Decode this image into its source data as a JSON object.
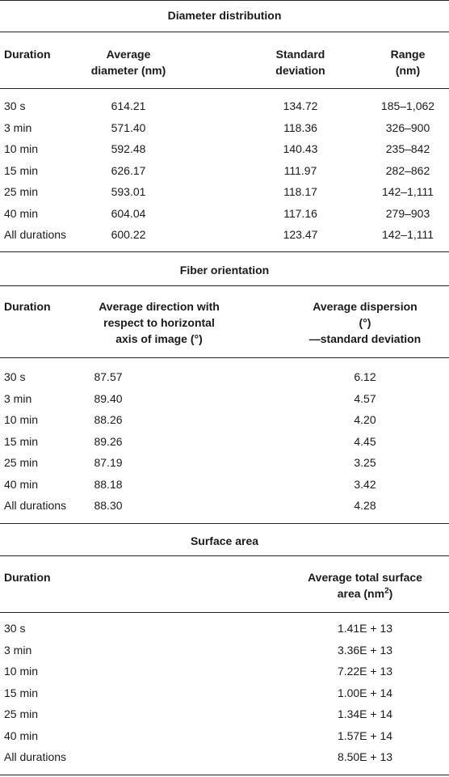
{
  "diameter": {
    "title": "Diameter distribution",
    "headers": {
      "duration": "Duration",
      "avg": "Average\ndiameter (nm)",
      "sd": "Standard\ndeviation",
      "range": "Range\n(nm)"
    },
    "rows": [
      {
        "duration": "30 s",
        "avg": "614.21",
        "sd": "134.72",
        "range": "185–1,062"
      },
      {
        "duration": "3 min",
        "avg": "571.40",
        "sd": "118.36",
        "range": "326–900"
      },
      {
        "duration": "10 min",
        "avg": "592.48",
        "sd": "140.43",
        "range": "235–842"
      },
      {
        "duration": "15 min",
        "avg": "626.17",
        "sd": "111.97",
        "range": "282–862"
      },
      {
        "duration": "25 min",
        "avg": "593.01",
        "sd": "118.17",
        "range": "142–1,111"
      },
      {
        "duration": "40 min",
        "avg": "604.04",
        "sd": "117.16",
        "range": "279–903"
      },
      {
        "duration": "All durations",
        "avg": "600.22",
        "sd": "123.47",
        "range": "142–1,111"
      }
    ]
  },
  "orientation": {
    "title": "Fiber orientation",
    "headers": {
      "duration": "Duration",
      "direction": "Average direction with\nrespect to horizontal\naxis of image (°)",
      "dispersion": "Average dispersion\n(°)\n—standard deviation"
    },
    "rows": [
      {
        "duration": "30 s",
        "direction": "87.57",
        "dispersion": "6.12"
      },
      {
        "duration": "3 min",
        "direction": "89.40",
        "dispersion": "4.57"
      },
      {
        "duration": "10 min",
        "direction": "88.26",
        "dispersion": "4.20"
      },
      {
        "duration": "15 min",
        "direction": "89.26",
        "dispersion": "4.45"
      },
      {
        "duration": "25 min",
        "direction": "87.19",
        "dispersion": "3.25"
      },
      {
        "duration": "40 min",
        "direction": "88.18",
        "dispersion": "3.42"
      },
      {
        "duration": "All durations",
        "direction": "88.30",
        "dispersion": "4.28"
      }
    ]
  },
  "surface": {
    "title": "Surface area",
    "headers": {
      "duration": "Duration",
      "area_line1": "Average total surface",
      "area_line2_prefix": "area (nm",
      "area_line2_sup": "2",
      "area_line2_suffix": ")"
    },
    "rows": [
      {
        "duration": "30 s",
        "area": "1.41E + 13"
      },
      {
        "duration": "3 min",
        "area": "3.36E + 13"
      },
      {
        "duration": "10 min",
        "area": "7.22E + 13"
      },
      {
        "duration": "15 min",
        "area": "1.00E + 14"
      },
      {
        "duration": "25 min",
        "area": "1.34E + 14"
      },
      {
        "duration": "40 min",
        "area": "1.57E + 14"
      },
      {
        "duration": "All durations",
        "area": "8.50E + 13"
      }
    ]
  }
}
